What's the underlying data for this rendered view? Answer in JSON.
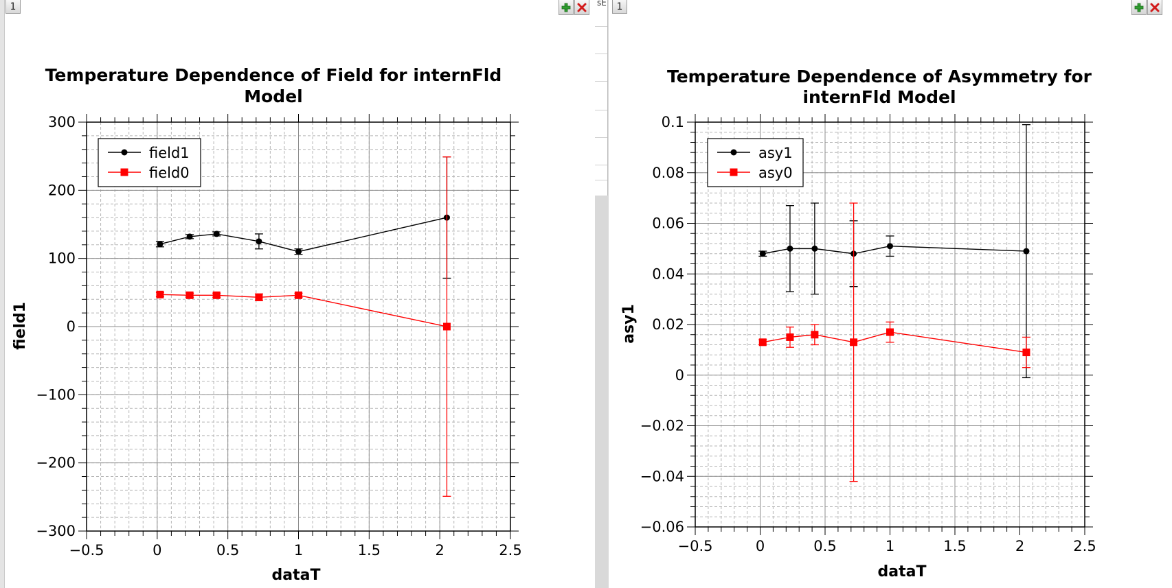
{
  "panels": {
    "left": {
      "number": "1"
    },
    "right": {
      "number": "1"
    }
  },
  "background_stub_text": "sE",
  "icons": {
    "add": "green-plus-icon",
    "close": "red-x-icon"
  },
  "colors": {
    "series_black": "#000000",
    "series_red": "#ff0000",
    "grid": "#8c8c8c"
  },
  "chart_data": [
    {
      "type": "scatter",
      "title": [
        "Temperature Dependence of Field for internFld",
        "Model"
      ],
      "xlabel": "dataT",
      "ylabel": "field1",
      "xlim": [
        -0.5,
        2.5
      ],
      "ylim": [
        -300,
        300
      ],
      "xticks": [
        "-0.5",
        "0",
        "0.5",
        "1",
        "1.5",
        "2",
        "2.5"
      ],
      "yticks": [
        "300",
        "200",
        "100",
        "0",
        "-100",
        "-200",
        "-300"
      ],
      "grid": true,
      "legend_position": "top-left",
      "series": [
        {
          "name": "field1",
          "marker": "circle",
          "color": "#000000",
          "x": [
            0.02,
            0.23,
            0.42,
            0.72,
            1.0,
            2.05
          ],
          "y": [
            121,
            132,
            136,
            125,
            110,
            160
          ],
          "yerr": [
            4,
            3,
            3,
            11,
            4,
            89
          ]
        },
        {
          "name": "field0",
          "marker": "square",
          "color": "#ff0000",
          "x": [
            0.02,
            0.23,
            0.42,
            0.72,
            1.0,
            2.05
          ],
          "y": [
            47,
            46,
            46,
            43,
            46,
            0
          ],
          "yerr": [
            3,
            3,
            3,
            5,
            3,
            249
          ]
        }
      ]
    },
    {
      "type": "scatter",
      "title": [
        "Temperature Dependence of Asymmetry for",
        "internFld Model"
      ],
      "xlabel": "dataT",
      "ylabel": "asy1",
      "xlim": [
        -0.5,
        2.5
      ],
      "ylim": [
        -0.06,
        0.1
      ],
      "xticks": [
        "-0.5",
        "0",
        "0.5",
        "1",
        "1.5",
        "2",
        "2.5"
      ],
      "yticks": [
        "0.1",
        "0.08",
        "0.06",
        "0.04",
        "0.02",
        "0",
        "-0.02",
        "-0.04",
        "-0.06"
      ],
      "grid": true,
      "legend_position": "top-left",
      "series": [
        {
          "name": "asy1",
          "marker": "circle",
          "color": "#000000",
          "x": [
            0.02,
            0.23,
            0.42,
            0.72,
            1.0,
            2.05
          ],
          "y": [
            0.048,
            0.05,
            0.05,
            0.048,
            0.051,
            0.049
          ],
          "yerr": [
            0.001,
            0.017,
            0.018,
            0.013,
            0.004,
            0.05
          ]
        },
        {
          "name": "asy0",
          "marker": "square",
          "color": "#ff0000",
          "x": [
            0.02,
            0.23,
            0.42,
            0.72,
            1.0,
            2.05
          ],
          "y": [
            0.013,
            0.015,
            0.016,
            0.013,
            0.017,
            0.009
          ],
          "yerr": [
            0.001,
            0.004,
            0.004,
            0.055,
            0.004,
            0.006
          ]
        }
      ]
    }
  ]
}
